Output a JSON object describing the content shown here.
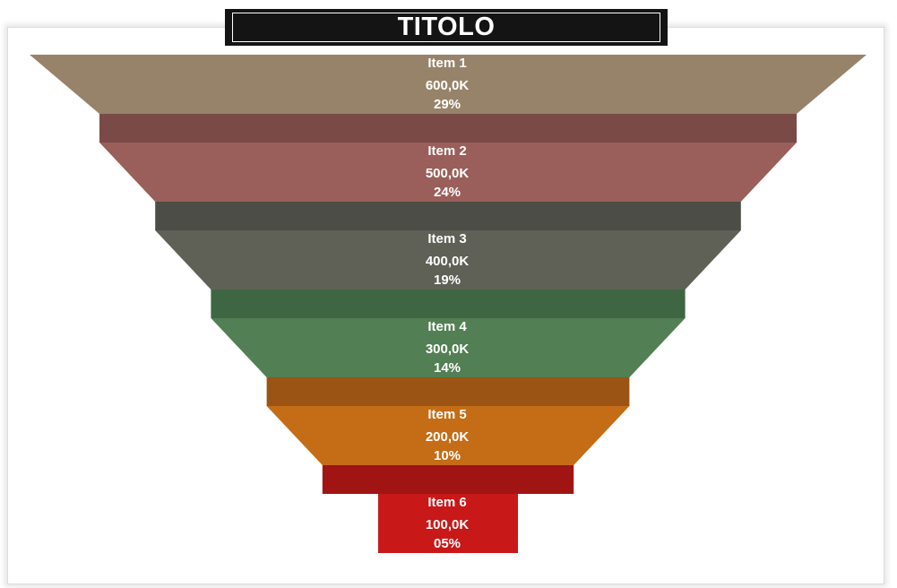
{
  "chart_data": {
    "type": "funnel",
    "title": "TITOLO",
    "categories": [
      "Item 1",
      "Item 2",
      "Item 3",
      "Item 4",
      "Item 5",
      "Item 6"
    ],
    "values": [
      600000,
      500000,
      400000,
      300000,
      200000,
      100000
    ],
    "value_labels": [
      "600,0K",
      "500,0K",
      "400,0K",
      "300,0K",
      "200,0K",
      "100,0K"
    ],
    "percent_labels": [
      "29%",
      "24%",
      "19%",
      "14%",
      "10%",
      "05%"
    ],
    "colors": [
      {
        "main": "#978369",
        "band": "#7a4a46"
      },
      {
        "main": "#9a5f5a",
        "band": "#4b4d46"
      },
      {
        "main": "#5f6157",
        "band": "#3e6643"
      },
      {
        "main": "#527f53",
        "band": "#9b5413"
      },
      {
        "main": "#c46d16",
        "band": "#a01414"
      },
      {
        "main": "#c91818",
        "band": null
      }
    ]
  }
}
